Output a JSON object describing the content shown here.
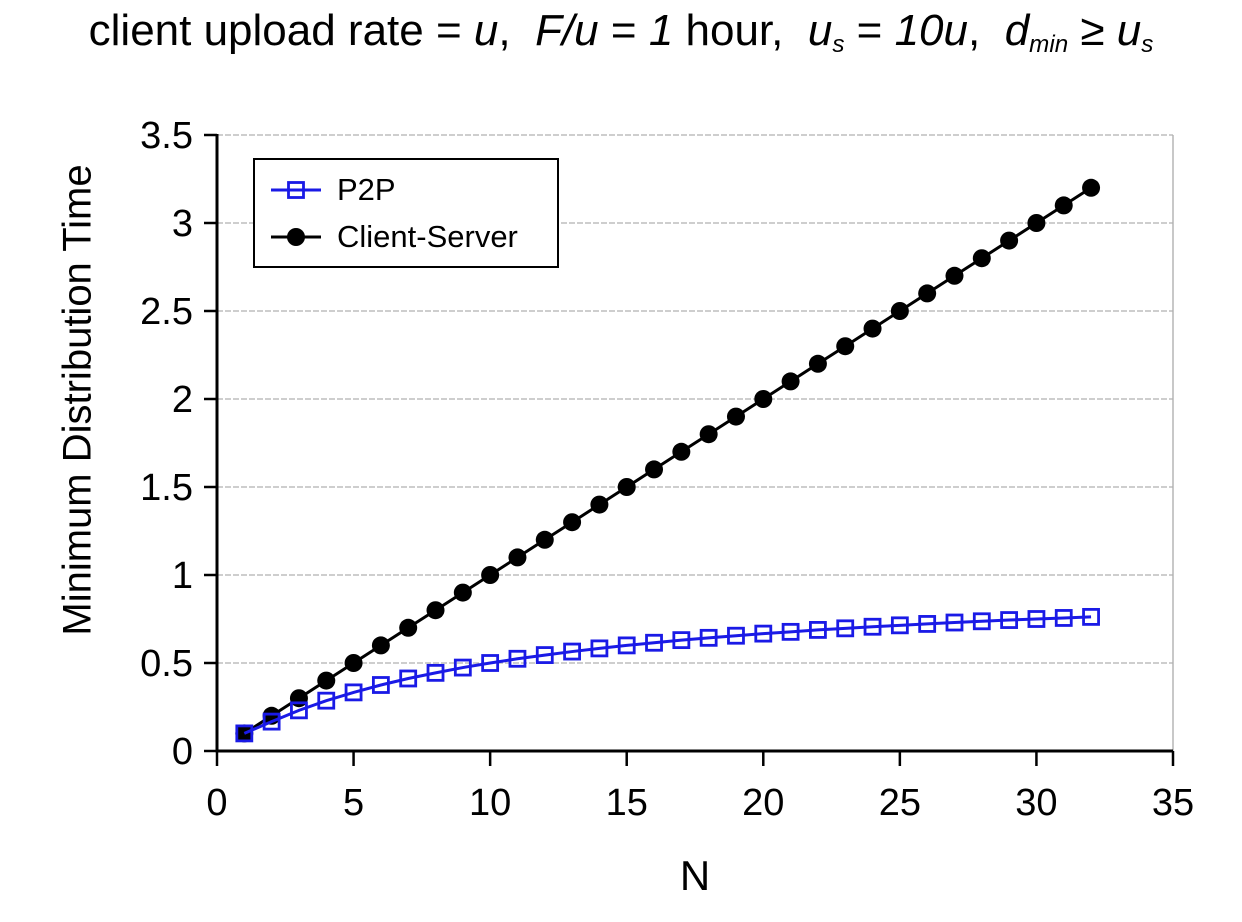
{
  "title": {
    "full_text": "client upload rate = u,  F/u = 1 hour,  us = 10u,  dmin ≥ us",
    "segments": [
      {
        "text": "client upload rate = ",
        "style": "plain"
      },
      {
        "text": "u",
        "style": "italic"
      },
      {
        "text": ",  ",
        "style": "plain"
      },
      {
        "text": "F/u",
        "style": "italic"
      },
      {
        "text": " = ",
        "style": "plain"
      },
      {
        "text": "1",
        "style": "italic"
      },
      {
        "text": " hour,  ",
        "style": "plain"
      },
      {
        "text": "u",
        "style": "italic"
      },
      {
        "text": "s",
        "style": "sub"
      },
      {
        "text": " = ",
        "style": "plain"
      },
      {
        "text": "10u",
        "style": "italic"
      },
      {
        "text": ",  ",
        "style": "plain"
      },
      {
        "text": "d",
        "style": "italic"
      },
      {
        "text": "min",
        "style": "sub"
      },
      {
        "text": " ≥ ",
        "style": "plain"
      },
      {
        "text": "u",
        "style": "italic"
      },
      {
        "text": "s",
        "style": "sub"
      }
    ]
  },
  "chart_data": {
    "type": "line",
    "title": "client upload rate = u,  F/u = 1 hour,  us = 10u,  dmin ≥ us",
    "xlabel": "N",
    "ylabel": "Minimum Distribution Time",
    "xlim": [
      0,
      35
    ],
    "ylim": [
      0,
      3.5
    ],
    "xticks": [
      0,
      5,
      10,
      15,
      20,
      25,
      30,
      35
    ],
    "yticks": [
      0,
      0.5,
      1,
      1.5,
      2,
      2.5,
      3,
      3.5
    ],
    "grid": "horizontal-dashed",
    "grid_color": "#b0b0b0",
    "axis_color": "#000000",
    "legend_position": "upper-left",
    "x": [
      1,
      2,
      3,
      4,
      5,
      6,
      7,
      8,
      9,
      10,
      11,
      12,
      13,
      14,
      15,
      16,
      17,
      18,
      19,
      20,
      21,
      22,
      23,
      24,
      25,
      26,
      27,
      28,
      29,
      30,
      31,
      32
    ],
    "series": [
      {
        "name": "P2P",
        "color": "#1a1ae6",
        "marker": "open-square",
        "values": [
          0.1,
          0.167,
          0.231,
          0.286,
          0.333,
          0.375,
          0.412,
          0.444,
          0.474,
          0.5,
          0.524,
          0.545,
          0.565,
          0.583,
          0.6,
          0.615,
          0.63,
          0.643,
          0.655,
          0.667,
          0.677,
          0.688,
          0.697,
          0.706,
          0.714,
          0.722,
          0.73,
          0.737,
          0.744,
          0.75,
          0.756,
          0.762
        ]
      },
      {
        "name": "Client-Server",
        "color": "#000000",
        "marker": "filled-circle",
        "values": [
          0.1,
          0.2,
          0.3,
          0.4,
          0.5,
          0.6,
          0.7,
          0.8,
          0.9,
          1.0,
          1.1,
          1.2,
          1.3,
          1.4,
          1.5,
          1.6,
          1.7,
          1.8,
          1.9,
          2.0,
          2.1,
          2.2,
          2.3,
          2.4,
          2.5,
          2.6,
          2.7,
          2.8,
          2.9,
          3.0,
          3.1,
          3.2
        ]
      }
    ]
  }
}
